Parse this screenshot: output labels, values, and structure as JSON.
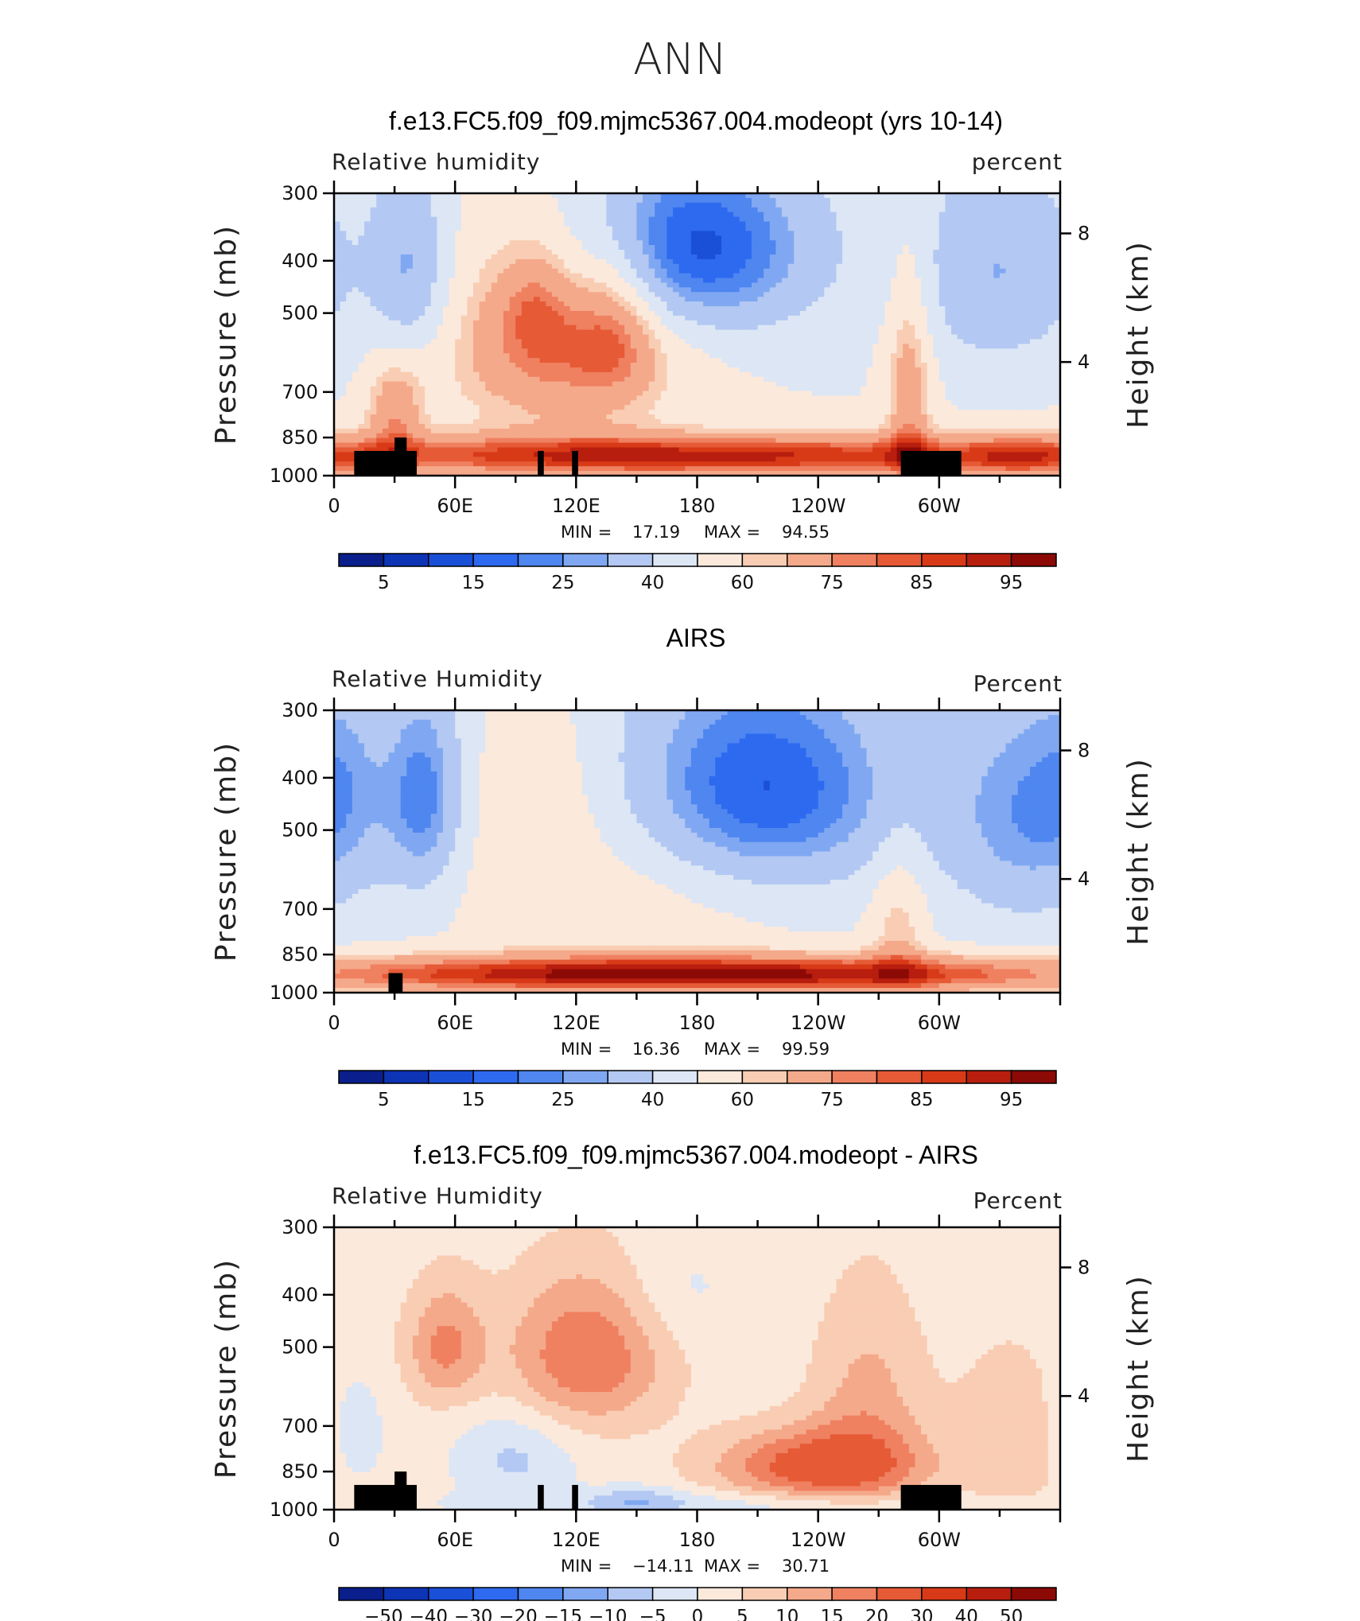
{
  "figure": {
    "title": "ANN"
  },
  "colormaps": {
    "abs": [
      "#0a1f8c",
      "#0d34b5",
      "#1a4fd8",
      "#2d6af0",
      "#4f86f0",
      "#80a8f2",
      "#b3c8f2",
      "#dce6f5",
      "#fbe9dc",
      "#f9cdb3",
      "#f4a98a",
      "#ef8060",
      "#e65a36",
      "#d83a18",
      "#b81e0e",
      "#8c0a06"
    ],
    "diff": [
      "#0a1f8c",
      "#0d34b5",
      "#1a4fd8",
      "#2d6af0",
      "#4f86f0",
      "#80a8f2",
      "#b3c8f2",
      "#dce6f5",
      "#fbe9dc",
      "#f9cdb3",
      "#f4a98a",
      "#ef8060",
      "#e65a36",
      "#d83a18",
      "#b81e0e",
      "#8c0a06"
    ]
  },
  "chart_data": [
    {
      "type": "heatmap",
      "title": "f.e13.FC5.f09_f09.mjmc5367.004.modeopt (yrs 10-14)",
      "left_label": "Relative  humidity",
      "right_label": "percent",
      "ylabel": "Pressure  (mb)",
      "y2label": "Height  (km)",
      "x_ticks": [
        "0",
        "60E",
        "120E",
        "180",
        "120W",
        "60W"
      ],
      "x_range_deg": [
        0,
        360
      ],
      "y_ticks": [
        "300",
        "400",
        "500",
        "700",
        "850",
        "1000"
      ],
      "y_range_mb": [
        300,
        1000
      ],
      "y2_ticks": [
        "8",
        "4"
      ],
      "stats": {
        "min_label": "MIN =",
        "min": "17.19",
        "max_label": "MAX =",
        "max": "94.55"
      },
      "colormap": "abs",
      "contour_levels": [
        5,
        10,
        15,
        20,
        25,
        30,
        40,
        50,
        60,
        65,
        75,
        80,
        85,
        90,
        95
      ],
      "colorbar_labels": [
        "5",
        "15",
        "25",
        "40",
        "60",
        "75",
        "85",
        "95"
      ],
      "field": {
        "base": 50,
        "features": [
          {
            "lon": 175,
            "p": 380,
            "slon": 45,
            "sp": 110,
            "amp": -40
          },
          {
            "lon": 330,
            "p": 420,
            "slon": 30,
            "sp": 140,
            "amp": -20
          },
          {
            "lon": 38,
            "p": 420,
            "slon": 14,
            "sp": 130,
            "amp": -22
          },
          {
            "lon": 112,
            "p": 560,
            "slon": 40,
            "sp": 170,
            "amp": 30
          },
          {
            "lon": 100,
            "p": 480,
            "slon": 12,
            "sp": 80,
            "amp": 12
          },
          {
            "lon": 140,
            "p": 520,
            "slon": 14,
            "sp": 120,
            "amp": 16
          },
          {
            "lon": 180,
            "p": 920,
            "slon": 160,
            "sp": 60,
            "amp": 42
          },
          {
            "lon": 30,
            "p": 760,
            "slon": 10,
            "sp": 120,
            "amp": 22
          },
          {
            "lon": 285,
            "p": 700,
            "slon": 8,
            "sp": 230,
            "amp": 22
          },
          {
            "lon": 345,
            "p": 920,
            "slon": 25,
            "sp": 60,
            "amp": 18
          }
        ]
      },
      "topography": [
        [
          10,
          900,
          41
        ],
        [
          30,
          850,
          36
        ],
        [
          101,
          900,
          104
        ],
        [
          118,
          900,
          121
        ],
        [
          281,
          900,
          311
        ]
      ]
    },
    {
      "type": "heatmap",
      "title": "AIRS",
      "left_label": "Relative Humidity",
      "right_label": "Percent",
      "ylabel": "Pressure  (mb)",
      "y2label": "Height  (km)",
      "x_ticks": [
        "0",
        "60E",
        "120E",
        "180",
        "120W",
        "60W"
      ],
      "x_range_deg": [
        0,
        360
      ],
      "y_ticks": [
        "300",
        "400",
        "500",
        "700",
        "850",
        "1000"
      ],
      "y_range_mb": [
        300,
        1000
      ],
      "y2_ticks": [
        "8",
        "4"
      ],
      "stats": {
        "min_label": "MIN =",
        "min": "16.36",
        "max_label": "MAX =",
        "max": "99.59"
      },
      "colormap": "abs",
      "contour_levels": [
        5,
        10,
        15,
        20,
        25,
        30,
        40,
        50,
        60,
        65,
        75,
        80,
        85,
        90,
        95
      ],
      "colorbar_labels": [
        "5",
        "15",
        "25",
        "40",
        "60",
        "75",
        "85",
        "95"
      ],
      "field": {
        "base": 48,
        "features": [
          {
            "lon": 210,
            "p": 430,
            "slon": 50,
            "sp": 150,
            "amp": -38
          },
          {
            "lon": 345,
            "p": 470,
            "slon": 30,
            "sp": 170,
            "amp": -22
          },
          {
            "lon": 45,
            "p": 440,
            "slon": 14,
            "sp": 140,
            "amp": -26
          },
          {
            "lon": 5,
            "p": 400,
            "slon": 14,
            "sp": 120,
            "amp": -8
          },
          {
            "lon": 175,
            "p": 925,
            "slon": 160,
            "sp": 55,
            "amp": 50
          },
          {
            "lon": 150,
            "p": 600,
            "slon": 70,
            "sp": 180,
            "amp": 12
          },
          {
            "lon": 100,
            "p": 400,
            "slon": 20,
            "sp": 120,
            "amp": 8
          },
          {
            "lon": 280,
            "p": 750,
            "slon": 10,
            "sp": 180,
            "amp": 15
          }
        ]
      },
      "topography": [
        [
          27,
          920,
          34
        ]
      ]
    },
    {
      "type": "heatmap",
      "title": "f.e13.FC5.f09_f09.mjmc5367.004.modeopt - AIRS",
      "left_label": "Relative Humidity",
      "right_label": "Percent",
      "ylabel": "Pressure  (mb)",
      "y2label": "Height  (km)",
      "x_ticks": [
        "0",
        "60E",
        "120E",
        "180",
        "120W",
        "60W"
      ],
      "x_range_deg": [
        0,
        360
      ],
      "y_ticks": [
        "300",
        "400",
        "500",
        "700",
        "850",
        "1000"
      ],
      "y_range_mb": [
        300,
        1000
      ],
      "y2_ticks": [
        "8",
        "4"
      ],
      "stats": {
        "min_label": "MIN =",
        "min": "−14.11",
        "max_label": "MAX =",
        "max": "30.71"
      },
      "colormap": "diff",
      "contour_levels": [
        -50,
        -40,
        -30,
        -20,
        -15,
        -10,
        -5,
        0,
        5,
        10,
        15,
        20,
        30,
        40,
        50
      ],
      "colorbar_labels": [
        "−50",
        "−40",
        "−30",
        "−20",
        "−15",
        "−10",
        "−5",
        "0",
        "5",
        "10",
        "15",
        "20",
        "30",
        "40",
        "50"
      ],
      "field": {
        "base": 2,
        "features": [
          {
            "lon": 125,
            "p": 520,
            "slon": 28,
            "sp": 120,
            "amp": 18
          },
          {
            "lon": 55,
            "p": 500,
            "slon": 14,
            "sp": 90,
            "amp": 14
          },
          {
            "lon": 240,
            "p": 830,
            "slon": 35,
            "sp": 90,
            "amp": 22
          },
          {
            "lon": 265,
            "p": 650,
            "slon": 20,
            "sp": 200,
            "amp": 10
          },
          {
            "lon": 90,
            "p": 800,
            "slon": 20,
            "sp": 120,
            "amp": -8
          },
          {
            "lon": 200,
            "p": 980,
            "slon": 90,
            "sp": 40,
            "amp": -6
          },
          {
            "lon": 150,
            "p": 960,
            "slon": 15,
            "sp": 40,
            "amp": -8
          },
          {
            "lon": 170,
            "p": 400,
            "slon": 20,
            "sp": 70,
            "amp": -4
          },
          {
            "lon": 335,
            "p": 750,
            "slon": 20,
            "sp": 200,
            "amp": 7
          },
          {
            "lon": 10,
            "p": 720,
            "slon": 10,
            "sp": 120,
            "amp": -6
          }
        ]
      },
      "topography": [
        [
          10,
          900,
          41
        ],
        [
          30,
          850,
          36
        ],
        [
          101,
          900,
          104
        ],
        [
          118,
          900,
          121
        ],
        [
          281,
          900,
          311
        ]
      ]
    }
  ]
}
